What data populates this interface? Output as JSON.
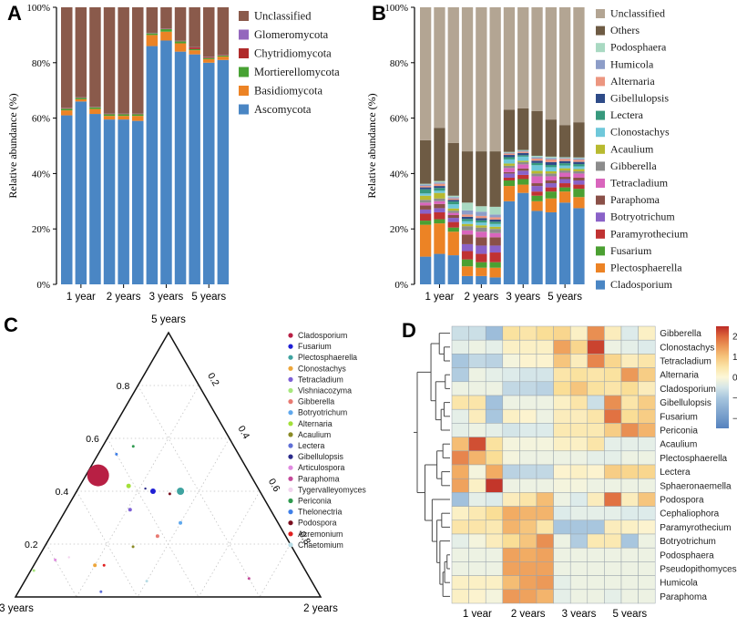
{
  "panels": {
    "a_label": "A",
    "b_label": "B",
    "c_label": "C",
    "d_label": "D"
  },
  "chart_data": [
    {
      "id": "A",
      "type": "bar",
      "stacked": true,
      "ylabel": "Relative abundance (%)",
      "yticks": [
        "0%",
        "20%",
        "40%",
        "60%",
        "80%",
        "100%"
      ],
      "ylim": [
        0,
        100
      ],
      "grid": false,
      "legend_position": "right",
      "groups": [
        "1 year",
        "2 years",
        "3 years",
        "5 years"
      ],
      "bars_per_group": 3,
      "series": [
        {
          "name": "Ascomycota",
          "color": "#4a86c4",
          "values": [
            61,
            66,
            61.5,
            59.5,
            59.5,
            59,
            86,
            88,
            84,
            83,
            80,
            81
          ]
        },
        {
          "name": "Basidiomycota",
          "color": "#ec8325",
          "values": [
            1.8,
            0.8,
            1.8,
            1.3,
            1.3,
            1.8,
            4,
            3.2,
            3,
            1.5,
            1.3,
            1.2
          ]
        },
        {
          "name": "Mortierellomycota",
          "color": "#48a234",
          "values": [
            0.6,
            0.5,
            0.6,
            0.6,
            0.6,
            0.6,
            0.6,
            0.9,
            0.7,
            0.4,
            0.4,
            0.4
          ]
        },
        {
          "name": "Chytridiomycota",
          "color": "#b02b2b",
          "values": [
            0.2,
            0.1,
            0.1,
            0.1,
            0.1,
            0.1,
            0.1,
            0.1,
            0.1,
            0.6,
            0.3,
            0.2
          ]
        },
        {
          "name": "Glomeromycota",
          "color": "#9467bd",
          "values": [
            0.1,
            0.1,
            0.1,
            0.1,
            0.1,
            0.1,
            0.1,
            0.1,
            0.1,
            0.1,
            0.1,
            0.1
          ]
        },
        {
          "name": "Unclassified",
          "color": "#8a5a4b",
          "values": [
            36.3,
            32.5,
            35.9,
            38.4,
            38.4,
            38.4,
            9.2,
            7.7,
            12.1,
            14.4,
            17.9,
            17.1
          ]
        }
      ]
    },
    {
      "id": "B",
      "type": "bar",
      "stacked": true,
      "ylabel": "Relative abundance (%)",
      "yticks": [
        "0%",
        "20%",
        "40%",
        "60%",
        "80%",
        "100%"
      ],
      "ylim": [
        0,
        100
      ],
      "grid": false,
      "legend_position": "right",
      "groups": [
        "1 year",
        "2 years",
        "3 years",
        "5 years"
      ],
      "bars_per_group": 3,
      "series": [
        {
          "name": "Cladosporium",
          "color": "#4a86c4",
          "values": [
            10,
            11,
            10.5,
            3,
            3,
            2.5,
            30,
            33,
            26.5,
            26,
            29.5,
            27.5
          ]
        },
        {
          "name": "Plectosphaerella",
          "color": "#ec8325",
          "values": [
            11.5,
            11,
            8.5,
            3.5,
            3,
            3.5,
            5.5,
            3,
            3.5,
            5,
            4,
            4
          ]
        },
        {
          "name": "Fusarium",
          "color": "#4ba032",
          "values": [
            1.5,
            1.5,
            1.5,
            2.5,
            2,
            2,
            2,
            2,
            2,
            2.5,
            1.5,
            3
          ]
        },
        {
          "name": "Paramyrothecium",
          "color": "#c03232",
          "values": [
            2.5,
            2.5,
            2,
            3,
            3,
            3.5,
            1,
            1.5,
            1.5,
            1.5,
            1.5,
            1.5
          ]
        },
        {
          "name": "Botryotrichum",
          "color": "#8a62c8",
          "values": [
            1.5,
            1.5,
            1.5,
            2.5,
            3,
            2.5,
            1.5,
            1.5,
            2,
            1.5,
            1.5,
            1.5
          ]
        },
        {
          "name": "Paraphoma",
          "color": "#8a5048",
          "values": [
            1.5,
            1.5,
            1,
            3.5,
            3,
            3,
            0.5,
            0.8,
            1,
            1,
            0.8,
            1
          ]
        },
        {
          "name": "Tetracladium",
          "color": "#d965bd",
          "values": [
            1,
            1,
            0.8,
            1.5,
            2,
            1.5,
            1.5,
            1.5,
            2.5,
            1.5,
            1.5,
            1.5
          ]
        },
        {
          "name": "Gibberella",
          "color": "#8c8c8c",
          "values": [
            1,
            1,
            0.8,
            1.5,
            1.5,
            1.5,
            0.8,
            0.8,
            1,
            1,
            0.8,
            0.8
          ]
        },
        {
          "name": "Acaulium",
          "color": "#b8ba30",
          "values": [
            1.5,
            2,
            0.8,
            0.8,
            0.8,
            0.8,
            0.8,
            0.5,
            1,
            0.8,
            0.8,
            0.8
          ]
        },
        {
          "name": "Clonostachys",
          "color": "#6fc8da",
          "values": [
            0.8,
            0.8,
            1.5,
            1,
            1,
            1,
            1.5,
            1.5,
            2,
            1.5,
            1,
            1
          ]
        },
        {
          "name": "Lectera",
          "color": "#37997d",
          "values": [
            1.5,
            1,
            1,
            0.8,
            0.8,
            0.8,
            0.8,
            0.5,
            0.8,
            0.8,
            0.8,
            0.8
          ]
        },
        {
          "name": "Gibellulopsis",
          "color": "#2e4b88",
          "values": [
            0.7,
            0.7,
            0.6,
            0.8,
            0.8,
            0.8,
            0.8,
            0.8,
            0.8,
            1,
            0.8,
            0.8
          ]
        },
        {
          "name": "Alternaria",
          "color": "#ec9680",
          "values": [
            0.5,
            0.8,
            0.5,
            0.8,
            0.8,
            0.8,
            0.5,
            0.5,
            0.8,
            1,
            0.8,
            0.8
          ]
        },
        {
          "name": "Humicola",
          "color": "#8d9dc8",
          "values": [
            0.5,
            0.5,
            0.5,
            1.5,
            1.5,
            1,
            0.3,
            0.3,
            0.5,
            0.5,
            0.3,
            0.5
          ]
        },
        {
          "name": "Podosphaera",
          "color": "#a9d9c2",
          "values": [
            0.3,
            0.5,
            0.5,
            2.8,
            2,
            2.8,
            0.3,
            0.3,
            0.5,
            0.5,
            0.3,
            0.3
          ]
        },
        {
          "name": "Others",
          "color": "#6e5b44",
          "values": [
            15.7,
            19.2,
            19,
            18.5,
            19.8,
            20,
            15.2,
            15,
            16.1,
            13.4,
            11.6,
            12.7
          ]
        },
        {
          "name": "Unclassified",
          "color": "#b3a593",
          "values": [
            48,
            43.5,
            49,
            52,
            52,
            52,
            37,
            36.5,
            37.5,
            40.5,
            42.5,
            41.5
          ]
        }
      ]
    },
    {
      "id": "C",
      "type": "scatter",
      "subtype": "ternary",
      "vertex_labels": {
        "top": "5 years",
        "left": "3 years",
        "right": "2 years"
      },
      "axis_ticks": [
        0.2,
        0.4,
        0.6,
        0.8
      ],
      "grid": true,
      "legend": [
        {
          "name": "Cladosporium",
          "color": "#b81f44"
        },
        {
          "name": "Fusarium",
          "color": "#1f1fd4"
        },
        {
          "name": "Plectosphaerella",
          "color": "#3fa3a0"
        },
        {
          "name": "Clonostachys",
          "color": "#eda63b"
        },
        {
          "name": "Tetracladium",
          "color": "#7d5fd6"
        },
        {
          "name": "Vishniacozyma",
          "color": "#a8e87d"
        },
        {
          "name": "Gibberella",
          "color": "#e87a72"
        },
        {
          "name": "Botryotrichum",
          "color": "#5fa8ed"
        },
        {
          "name": "Alternaria",
          "color": "#a3e03a"
        },
        {
          "name": "Acaulium",
          "color": "#8a8a25"
        },
        {
          "name": "Lectera",
          "color": "#5f6fd6"
        },
        {
          "name": "Gibellulopsis",
          "color": "#2a2a8a"
        },
        {
          "name": "Articulospora",
          "color": "#e08ae0"
        },
        {
          "name": "Paraphoma",
          "color": "#c44a9a"
        },
        {
          "name": "Tygervalleyomyces",
          "color": "#f2d4ef"
        },
        {
          "name": "Periconia",
          "color": "#2f9a4f"
        },
        {
          "name": "Thelonectria",
          "color": "#3f7fe8"
        },
        {
          "name": "Podospora",
          "color": "#7a0f1f"
        },
        {
          "name": "Acremonium",
          "color": "#e01f1f"
        },
        {
          "name": "Chaetomium",
          "color": "#b8dce5"
        }
      ],
      "points": [
        {
          "name": "Cladosporium",
          "frac": [
            0.46,
            0.5,
            0.04
          ],
          "r": 12
        },
        {
          "name": "Fusarium",
          "frac": [
            0.4,
            0.35,
            0.25
          ],
          "r": 3
        },
        {
          "name": "Plectosphaerella",
          "frac": [
            0.4,
            0.26,
            0.34
          ],
          "r": 4
        },
        {
          "name": "Clonostachys",
          "frac": [
            0.12,
            0.68,
            0.2
          ],
          "r": 2
        },
        {
          "name": "Tetracladium",
          "frac": [
            0.33,
            0.46,
            0.21
          ],
          "r": 2
        },
        {
          "name": "Vishniacozyma",
          "frac": [
            0.1,
            0.89,
            0.01
          ],
          "r": 1.5
        },
        {
          "name": "Gibberella",
          "frac": [
            0.23,
            0.42,
            0.35
          ],
          "r": 2
        },
        {
          "name": "Botryotrichum",
          "frac": [
            0.28,
            0.32,
            0.4
          ],
          "r": 2
        },
        {
          "name": "Alternaria",
          "frac": [
            0.42,
            0.42,
            0.16
          ],
          "r": 2.5
        },
        {
          "name": "Acaulium",
          "frac": [
            0.19,
            0.52,
            0.29
          ],
          "r": 1.5
        },
        {
          "name": "Lectera",
          "frac": [
            0.02,
            0.71,
            0.27
          ],
          "r": 1.5
        },
        {
          "name": "Gibellulopsis",
          "frac": [
            0.41,
            0.37,
            0.22
          ],
          "r": 1.2
        },
        {
          "name": "Articulospora",
          "frac": [
            0.14,
            0.8,
            0.06
          ],
          "r": 1.5
        },
        {
          "name": "Paraphoma",
          "frac": [
            0.07,
            0.2,
            0.73
          ],
          "r": 1.5
        },
        {
          "name": "Tygervalleyomyces",
          "frac": [
            0.15,
            0.75,
            0.1
          ],
          "r": 1.2
        },
        {
          "name": "Periconia",
          "frac": [
            0.57,
            0.33,
            0.1
          ],
          "r": 1.5
        },
        {
          "name": "Thelonectria",
          "frac": [
            0.54,
            0.4,
            0.06
          ],
          "r": 1.5
        },
        {
          "name": "Podospora",
          "frac": [
            0.39,
            0.3,
            0.31
          ],
          "r": 1.5
        },
        {
          "name": "Acremonium",
          "frac": [
            0.12,
            0.65,
            0.23
          ],
          "r": 1.5
        },
        {
          "name": "Chaetomium",
          "frac": [
            0.06,
            0.54,
            0.4
          ],
          "r": 1.5
        }
      ]
    },
    {
      "id": "D",
      "type": "heatmap",
      "rows": [
        "Gibberella",
        "Clonostachys",
        "Tetracladium",
        "Alternaria",
        "Cladosporium",
        "Gibellulopsis",
        "Fusarium",
        "Periconia",
        "Acaulium",
        "Plectosphaerella",
        "Lectera",
        "Sphaeronaemella",
        "Podospora",
        "Cephaliophora",
        "Paramyrothecium",
        "Botryotrichum",
        "Podosphaera",
        "Pseudopithomyces",
        "Humicola",
        "Paraphoma"
      ],
      "col_groups": [
        "1 year",
        "2 years",
        "3 years",
        "5 years"
      ],
      "cols_per_group": 3,
      "value_range": [
        -2.5,
        2.5
      ],
      "colorbar_ticks": [
        2,
        1,
        0,
        -1,
        -2
      ],
      "values": [
        [
          -0.6,
          -0.6,
          -1.2,
          0.6,
          0.5,
          0.7,
          0.8,
          0.2,
          1.6,
          0.3,
          -0.4,
          0.2
        ],
        [
          -0.3,
          -0.2,
          -0.3,
          0.2,
          0.2,
          0.2,
          1.4,
          0.8,
          2.3,
          -0.2,
          -0.3,
          -0.4
        ],
        [
          -1.0,
          -0.7,
          -0.8,
          -0.1,
          0.1,
          0.1,
          1.0,
          0.3,
          1.7,
          0.8,
          0.3,
          0.5
        ],
        [
          -0.9,
          -0.2,
          -0.3,
          -0.4,
          -0.5,
          -0.5,
          0.5,
          0.6,
          0.5,
          0.6,
          1.5,
          0.9
        ],
        [
          -0.2,
          -0.2,
          -0.2,
          -0.7,
          -0.7,
          -0.8,
          0.7,
          1.0,
          0.6,
          0.5,
          0.7,
          0.3
        ],
        [
          0.5,
          0.5,
          -1.1,
          -0.2,
          -0.2,
          -0.2,
          0.2,
          0.5,
          -0.6,
          1.6,
          0.5,
          0.9
        ],
        [
          -0.3,
          0.3,
          -1.0,
          0.2,
          0.1,
          -0.2,
          0.3,
          0.3,
          0.5,
          1.9,
          0.7,
          0.9
        ],
        [
          -0.3,
          -0.2,
          -0.3,
          -0.5,
          -0.4,
          -0.4,
          0.4,
          0.4,
          0.4,
          0.9,
          1.6,
          1.2
        ],
        [
          1.1,
          2.2,
          0.6,
          -0.1,
          -0.1,
          -0.1,
          0.2,
          0.2,
          0.5,
          -0.3,
          -0.3,
          -0.3
        ],
        [
          1.7,
          1.2,
          0.7,
          -0.1,
          -0.2,
          -0.2,
          -0.2,
          -0.2,
          -0.3,
          -0.3,
          -0.2,
          -0.2
        ],
        [
          1.3,
          -0.1,
          1.3,
          -0.8,
          -0.7,
          -0.7,
          0.1,
          0.2,
          0.1,
          0.9,
          0.8,
          0.8
        ],
        [
          1.4,
          0.2,
          2.4,
          -0.2,
          -0.2,
          -0.2,
          -0.1,
          -0.1,
          -0.2,
          -0.2,
          -0.2,
          -0.2
        ],
        [
          -1.1,
          -0.3,
          -0.4,
          0.3,
          0.5,
          1.1,
          -0.2,
          -0.4,
          0.3,
          1.9,
          0.3,
          1.0
        ],
        [
          0.2,
          0.4,
          0.7,
          1.3,
          1.2,
          1.2,
          -0.4,
          -0.3,
          -0.3,
          -0.3,
          -0.4,
          -0.4
        ],
        [
          0.5,
          0.5,
          0.4,
          1.2,
          1.0,
          0.5,
          -1.0,
          -1.0,
          -1.0,
          0.3,
          0.2,
          0.1
        ],
        [
          -0.3,
          -0.1,
          0.3,
          0.7,
          1.0,
          1.6,
          -0.2,
          -0.9,
          0.4,
          0.4,
          -1.0,
          -0.2
        ],
        [
          -0.2,
          -0.2,
          -0.2,
          1.4,
          1.3,
          1.4,
          -0.2,
          -0.2,
          -0.2,
          -0.2,
          -0.2,
          -0.2
        ],
        [
          -0.2,
          -0.2,
          -0.2,
          1.4,
          1.4,
          1.4,
          -0.2,
          -0.2,
          -0.2,
          -0.2,
          -0.2,
          -0.2
        ],
        [
          0.2,
          0.2,
          0.2,
          1.1,
          1.4,
          1.5,
          -0.3,
          -0.2,
          -0.2,
          -0.2,
          -0.2,
          -0.2
        ],
        [
          0.2,
          0.1,
          -0.1,
          1.5,
          1.4,
          1.2,
          -0.3,
          -0.2,
          -0.2,
          -0.3,
          -0.2,
          -0.2
        ]
      ],
      "dendrogram": [
        0.55,
        [
          0.32,
          [
            0.18,
            0,
            [
              0.1,
              1,
              2
            ]
          ],
          [
            0.24,
            [
              0.08,
              3,
              4
            ],
            [
              0.15,
              [
                0.1,
                5,
                6
              ],
              7
            ]
          ]
        ],
        [
          0.42,
          [
            0.22,
            [
              0.12,
              8,
              9
            ],
            [
              0.14,
              10,
              11
            ]
          ],
          [
            0.3,
            12,
            [
              0.22,
              [
                0.14,
                13,
                14
              ],
              [
                0.17,
                15,
                [
                  0.12,
                  [
                    0.09,
                    [
                      0.05,
                      16,
                      17
                    ],
                    18
                  ],
                  19
                ]
              ]
            ]
          ]
        ]
      ]
    }
  ]
}
